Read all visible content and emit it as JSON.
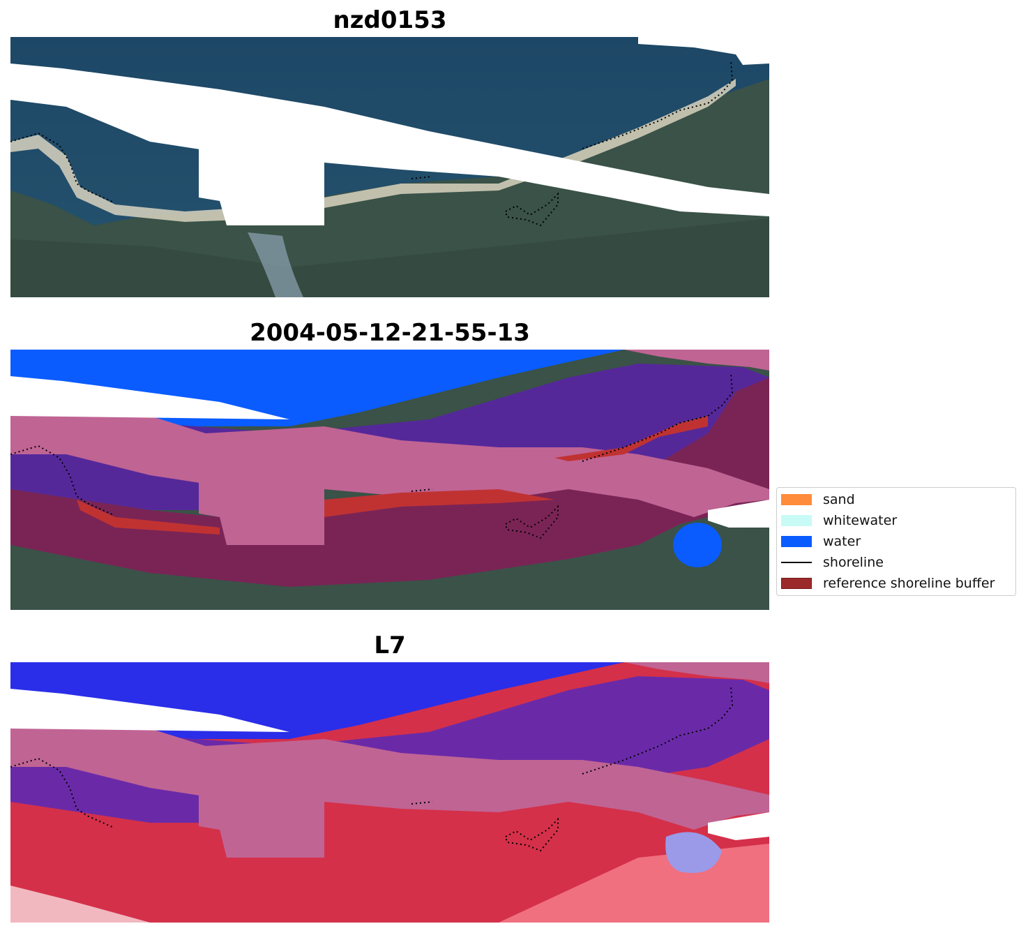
{
  "panels": [
    {
      "title": "nzd0153"
    },
    {
      "title": "2004-05-12-21-55-13"
    },
    {
      "title": "L7"
    }
  ],
  "legend": {
    "items": [
      {
        "label": "sand",
        "kind": "patch",
        "color": "#ff8c3a"
      },
      {
        "label": "whitewater",
        "kind": "patch",
        "color": "#c8fbf6"
      },
      {
        "label": "water",
        "kind": "patch",
        "color": "#0a5cff"
      },
      {
        "label": "shoreline",
        "kind": "line",
        "color": "#000000"
      },
      {
        "label": "reference shoreline buffer",
        "kind": "patch",
        "color": "#9b2a2a"
      }
    ]
  },
  "colors": {
    "ocean_dark": "#1e4a6a",
    "vegetation": "#3b5248",
    "sand_beach": "#dcd6c0",
    "water_class": "#0a5cff",
    "ocean_class": "#55289a",
    "land_overlay": "#7a2456",
    "buffer_pink": "#c06494",
    "shoreline_red": "#c03232",
    "index_blue": "#2a2ee8",
    "index_red": "#d4304a"
  }
}
